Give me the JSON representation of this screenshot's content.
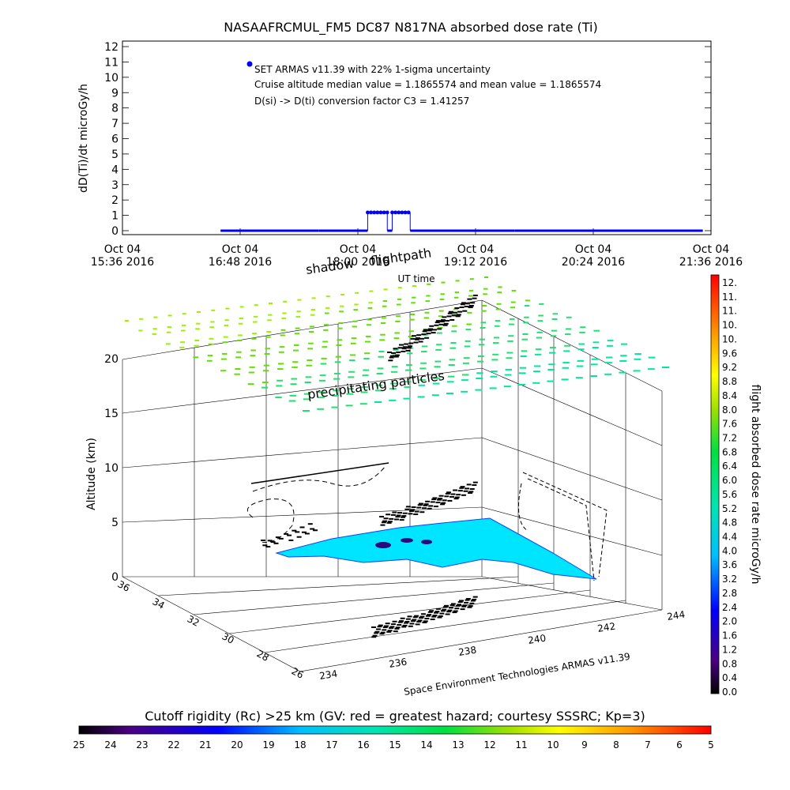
{
  "chart_data": [
    {
      "type": "line",
      "title": "NASAAFRCMUL_FM5 DC87 N817NA absorbed dose rate (Ti)",
      "ylabel": "dD(Ti)/dt microGy/h",
      "xlabel": "UT time",
      "ylim": [
        0,
        12
      ],
      "yticks": [
        "0",
        "1",
        "2",
        "3",
        "4",
        "5",
        "6",
        "7",
        "8",
        "9",
        "10",
        "11",
        "12"
      ],
      "xticks": [
        {
          "line1": "Oct 04",
          "line2": "15:36 2016"
        },
        {
          "line1": "Oct 04",
          "line2": "16:48 2016"
        },
        {
          "line1": "Oct 04",
          "line2": "18:00 2016"
        },
        {
          "line1": "Oct 04",
          "line2": "19:12 2016"
        },
        {
          "line1": "Oct 04",
          "line2": "20:24 2016"
        },
        {
          "line1": "Oct 04",
          "line2": "21:36 2016"
        }
      ],
      "xlim_minutes": [
        0,
        360
      ],
      "legend_label": "SET ARMAS v11.39 with 22% 1-sigma uncertainty",
      "annotations": [
        "Cruise altitude median value = 1.1865574 and mean value = 1.1865574",
        "D(si) -> D(ti) conversion factor C3 = 1.41257"
      ],
      "series_color": "#0000ff",
      "segments": [
        {
          "start": 60,
          "end": 120,
          "value": 0.0
        },
        {
          "start": 120,
          "end": 150,
          "value": 0.0
        },
        {
          "start": 150,
          "end": 162,
          "value": 1.19
        },
        {
          "start": 162,
          "end": 165,
          "value": 0.0
        },
        {
          "start": 165,
          "end": 176,
          "value": 1.19
        },
        {
          "start": 176,
          "end": 240,
          "value": 0.0
        },
        {
          "start": 240,
          "end": 355,
          "value": 0.0
        }
      ]
    },
    {
      "type": "scatter",
      "zlabel": "Altitude (km)",
      "zticks": [
        "0",
        "5",
        "10",
        "15",
        "20"
      ],
      "xticks": [
        "234",
        "236",
        "238",
        "240",
        "242",
        "244"
      ],
      "yticks": [
        "26",
        "28",
        "30",
        "32",
        "34",
        "36"
      ],
      "annotations": [
        "shadow",
        "flightpath",
        "precipitating particles"
      ],
      "footer": "Space Environment Technologies ARMAS v11.39"
    },
    {
      "type": "heatmap",
      "colorbar_label": "flight absorbed dose rate microGy/h",
      "colorbar_ticks": [
        "12.",
        "11.",
        "11.",
        "10.",
        "10.",
        "9.6",
        "9.2",
        "8.8",
        "8.4",
        "8.0",
        "7.6",
        "7.2",
        "6.8",
        "6.4",
        "6.0",
        "5.6",
        "5.2",
        "4.8",
        "4.4",
        "4.0",
        "3.6",
        "3.2",
        "2.8",
        "2.4",
        "2.0",
        "1.6",
        "1.2",
        "0.8",
        "0.4",
        "0.0"
      ]
    },
    {
      "type": "heatmap",
      "title": "Cutoff rigidity (Rc) >25 km (GV: red = greatest hazard; courtesy SSSRC; Kp=3)",
      "ticks": [
        "25",
        "24",
        "23",
        "22",
        "21",
        "20",
        "19",
        "18",
        "17",
        "16",
        "15",
        "14",
        "13",
        "12",
        "11",
        "10",
        "9",
        "8",
        "7",
        "6",
        "5"
      ]
    }
  ]
}
